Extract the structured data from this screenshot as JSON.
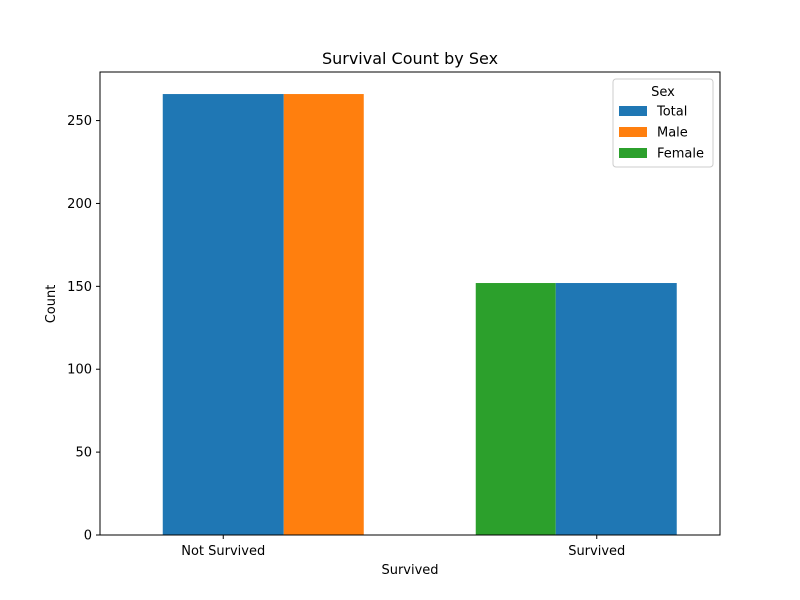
{
  "chart_data": {
    "type": "bar",
    "title": "Survival Count by Sex",
    "xlabel": "Survived",
    "ylabel": "Count",
    "ylim": [
      0,
      279.3
    ],
    "yticks": [
      0,
      50,
      100,
      150,
      200,
      250
    ],
    "grid": false,
    "categories": [
      "Not Survived",
      "Survived"
    ],
    "bars": [
      {
        "category": "Not Survived",
        "series": "Total",
        "value": 266
      },
      {
        "category": "Not Survived",
        "series": "Male",
        "value": 266
      },
      {
        "category": "Survived",
        "series": "Female",
        "value": 152
      },
      {
        "category": "Survived",
        "series": "Total",
        "value": 152
      }
    ],
    "legend": {
      "title": "Sex",
      "placement": "top-right",
      "entries": [
        {
          "name": "Total",
          "color": "#1f77b4"
        },
        {
          "name": "Male",
          "color": "#ff7f0e"
        },
        {
          "name": "Female",
          "color": "#2ca02c"
        }
      ]
    }
  }
}
